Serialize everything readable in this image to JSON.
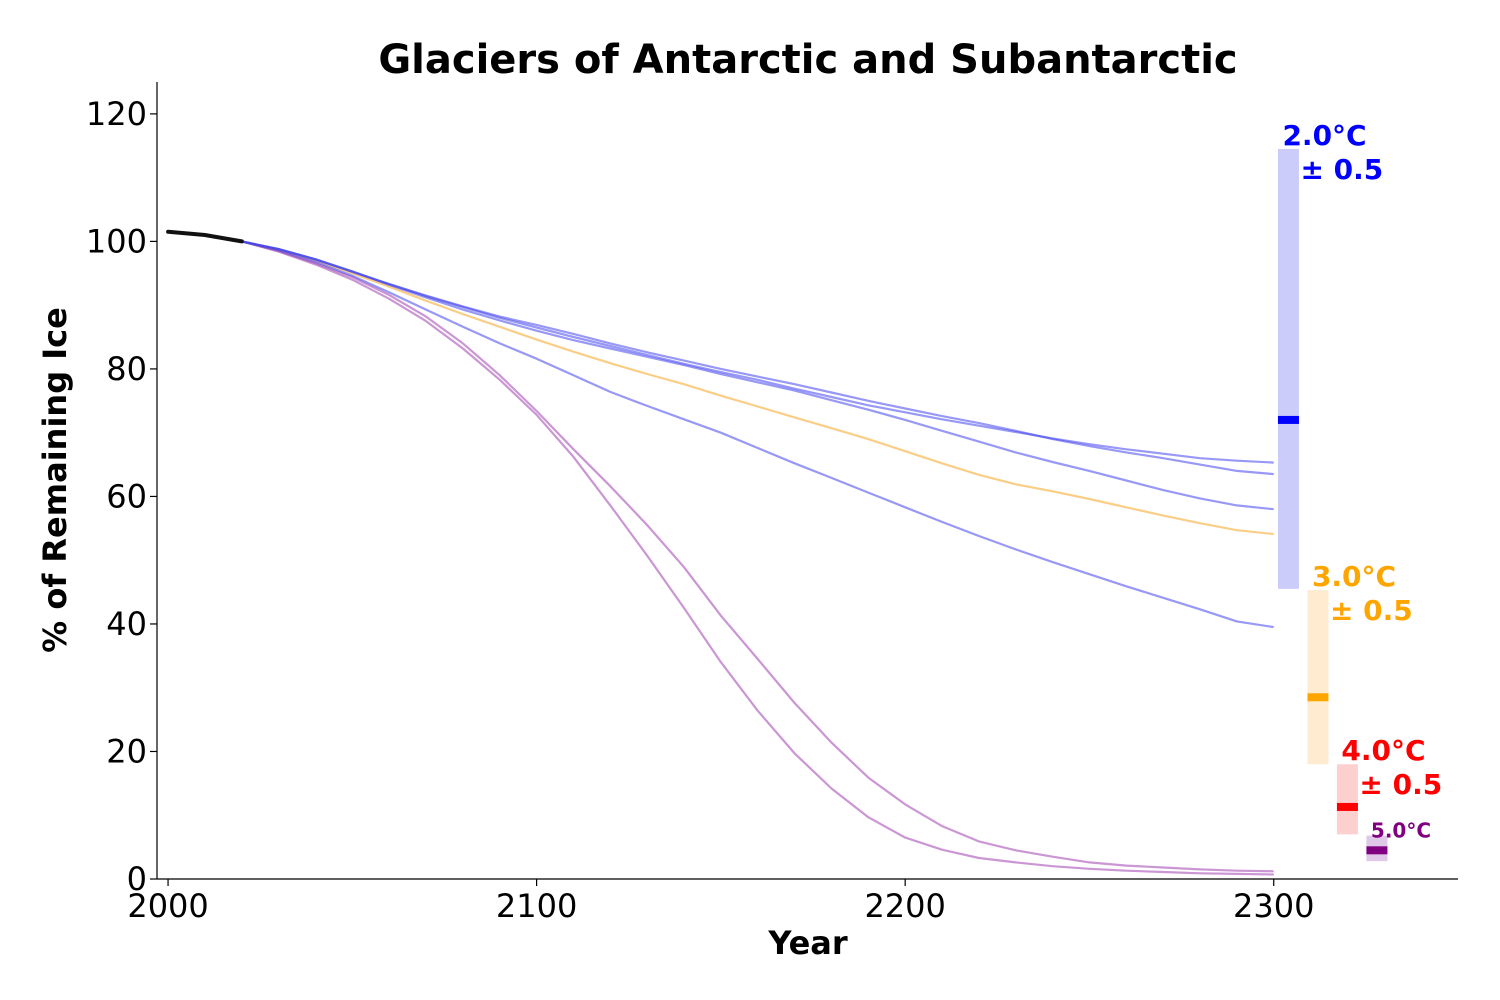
{
  "chart_data": {
    "type": "line",
    "title": "Glaciers of Antarctic and Subantarctic",
    "xlabel": "Year",
    "ylabel": "% of Remaining Ice",
    "xlim": [
      1997,
      2350
    ],
    "ylim": [
      0,
      125
    ],
    "xticks": [
      2000,
      2100,
      2200,
      2300
    ],
    "yticks": [
      0,
      20,
      40,
      60,
      80,
      100,
      120
    ],
    "x": [
      2000,
      2010,
      2020,
      2030,
      2040,
      2050,
      2060,
      2070,
      2080,
      2090,
      2100,
      2110,
      2120,
      2130,
      2140,
      2150,
      2160,
      2170,
      2180,
      2190,
      2200,
      2210,
      2220,
      2230,
      2240,
      2250,
      2260,
      2270,
      2280,
      2290,
      2300
    ],
    "historical": {
      "name": "historical",
      "color": "#111111",
      "x": [
        2000,
        2010,
        2020
      ],
      "values": [
        101.5,
        101.0,
        100.0
      ]
    },
    "series": [
      {
        "name": "2.0°C run 1",
        "group": "2.0",
        "color": "#4444ee",
        "values": [
          null,
          null,
          100.0,
          98.8,
          97.2,
          95.2,
          93.3,
          91.4,
          89.7,
          88.0,
          86.5,
          85.0,
          83.6,
          82.2,
          80.8,
          79.5,
          78.3,
          76.9,
          75.6,
          74.3,
          73.2,
          72.1,
          71.1,
          70.1,
          69.1,
          68.2,
          67.4,
          66.7,
          66.0,
          65.6,
          65.3
        ]
      },
      {
        "name": "2.0°C run 2",
        "group": "2.0",
        "color": "#4444ee",
        "values": [
          null,
          null,
          100.0,
          98.8,
          97.2,
          95.3,
          93.3,
          91.5,
          89.8,
          88.2,
          86.9,
          85.5,
          84.0,
          82.6,
          81.3,
          80.0,
          78.8,
          77.6,
          76.3,
          75.0,
          73.8,
          72.6,
          71.5,
          70.3,
          69.0,
          67.9,
          66.9,
          66.0,
          65.0,
          64.0,
          63.5
        ]
      },
      {
        "name": "2.0°C run 3",
        "group": "2.0",
        "color": "#4444ee",
        "values": [
          null,
          null,
          100.0,
          98.8,
          97.2,
          95.3,
          93.2,
          91.2,
          89.3,
          87.6,
          86.0,
          84.5,
          83.2,
          81.9,
          80.6,
          79.2,
          77.9,
          76.6,
          75.1,
          73.6,
          72.0,
          70.3,
          68.6,
          66.9,
          65.4,
          64.0,
          62.5,
          61.0,
          59.7,
          58.6,
          58.0
        ]
      },
      {
        "name": "2.0°C run 4",
        "group": "2.0",
        "color": "#4444ee",
        "values": [
          null,
          null,
          100.0,
          98.6,
          96.8,
          94.6,
          92.0,
          89.3,
          86.6,
          84.0,
          81.6,
          79.0,
          76.4,
          74.2,
          72.1,
          70.0,
          67.6,
          65.2,
          62.9,
          60.6,
          58.3,
          56.0,
          53.8,
          51.7,
          49.7,
          47.8,
          45.9,
          44.1,
          42.3,
          40.4,
          39.5
        ]
      },
      {
        "name": "3.0°C run 1",
        "group": "3.0",
        "color": "#f5a623",
        "values": [
          null,
          null,
          100.0,
          98.7,
          97.0,
          95.0,
          92.9,
          90.7,
          88.6,
          86.6,
          84.6,
          82.7,
          80.9,
          79.2,
          77.6,
          75.8,
          74.1,
          72.4,
          70.7,
          69.0,
          67.1,
          65.2,
          63.4,
          61.9,
          60.8,
          59.6,
          58.3,
          57.0,
          55.8,
          54.7,
          54.1
        ]
      },
      {
        "name": "5.0°C run 1",
        "group": "5.0",
        "color": "#a040b0",
        "values": [
          null,
          null,
          100.0,
          98.4,
          96.4,
          94.0,
          91.0,
          87.5,
          83.2,
          78.3,
          72.8,
          66.2,
          58.6,
          50.7,
          42.5,
          34.0,
          26.4,
          19.7,
          14.2,
          9.7,
          6.5,
          4.6,
          3.3,
          2.6,
          2.0,
          1.6,
          1.3,
          1.1,
          0.9,
          0.8,
          0.7
        ]
      },
      {
        "name": "5.0°C run 2",
        "group": "5.0",
        "color": "#a040b0",
        "values": [
          null,
          null,
          100.0,
          98.5,
          96.6,
          94.4,
          91.6,
          88.2,
          84.0,
          79.0,
          73.4,
          67.4,
          61.6,
          55.5,
          48.9,
          41.3,
          34.5,
          27.6,
          21.4,
          15.9,
          11.7,
          8.3,
          5.9,
          4.5,
          3.5,
          2.6,
          2.1,
          1.8,
          1.5,
          1.3,
          1.2
        ]
      }
    ],
    "ranges": [
      {
        "label": "2.0°C",
        "pm": "± 0.5",
        "color": "#0000ff",
        "fill": "#ccccfb",
        "x": 2304,
        "low": 45.5,
        "high": 114.5,
        "median": 72.0
      },
      {
        "label": "3.0°C",
        "pm": "± 0.5",
        "color": "#ffa500",
        "fill": "#ffecd0",
        "x": 2312,
        "low": 18.0,
        "high": 45.3,
        "median": 28.5
      },
      {
        "label": "4.0°C",
        "pm": "± 0.5",
        "color": "#ff0000",
        "fill": "#fdd0d0",
        "x": 2320,
        "low": 7.0,
        "high": 18.0,
        "median": 11.3
      },
      {
        "label": "5.0°C",
        "pm": "",
        "color": "#800080",
        "fill": "#e0c8e8",
        "x": 2328,
        "low": 2.8,
        "high": 6.8,
        "median": 4.5
      }
    ]
  }
}
